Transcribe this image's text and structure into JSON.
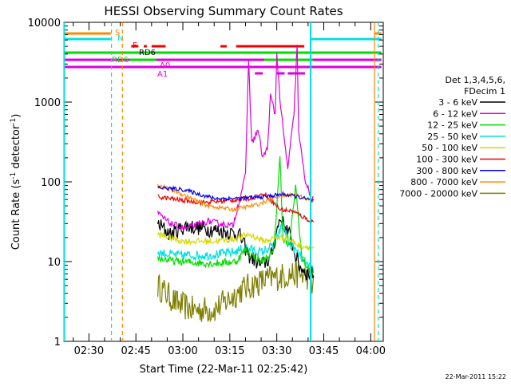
{
  "chart_data": {
    "type": "line",
    "title": "HESSI Observing Summary Count Rates",
    "xlabel": "Start Time (22-Mar-11 02:25:42)",
    "ylabel_main": "Count Rate (s",
    "ylabel_sup1": "-1",
    "ylabel_mid": " detector",
    "ylabel_sup2": "-1",
    "ylabel_end": ")",
    "y_scale": "log",
    "ylim": [
      1,
      10000
    ],
    "xlim_minutes": [
      "02:22",
      "04:04"
    ],
    "x_tick_labels": [
      "02:30",
      "02:45",
      "03:00",
      "03:15",
      "03:30",
      "03:45",
      "04:00"
    ],
    "y_tick_labels": [
      "1",
      "10",
      "100",
      "1000",
      "10000"
    ],
    "legend_placement": "right",
    "legend_header": [
      "Det 1,3,4,5,6,",
      "FDecim 1"
    ],
    "series": [
      {
        "name": "3 - 6 keV",
        "color": "#000000"
      },
      {
        "name": "6 - 12 keV",
        "color": "#dd00dd"
      },
      {
        "name": "12 - 25 keV",
        "color": "#00dd00"
      },
      {
        "name": "25 - 50 keV",
        "color": "#00e0e0"
      },
      {
        "name": "50 - 100 keV",
        "color": "#d8d800"
      },
      {
        "name": "100 - 300 keV",
        "color": "#ee0000"
      },
      {
        "name": "300 - 800 keV",
        "color": "#0000ee"
      },
      {
        "name": "800 - 7000 keV",
        "color": "#ff8800"
      },
      {
        "name": "7000 - 20000 keV",
        "color": "#7f7f00"
      }
    ],
    "flag_labels": {
      "S": "S",
      "N": "N",
      "F": "F",
      "RD6_a": "RD6",
      "RD6_b": "RD6",
      "A1": "A1",
      "A0": "A0"
    },
    "footer_timestamp": "22-Mar-2011 15:22"
  }
}
